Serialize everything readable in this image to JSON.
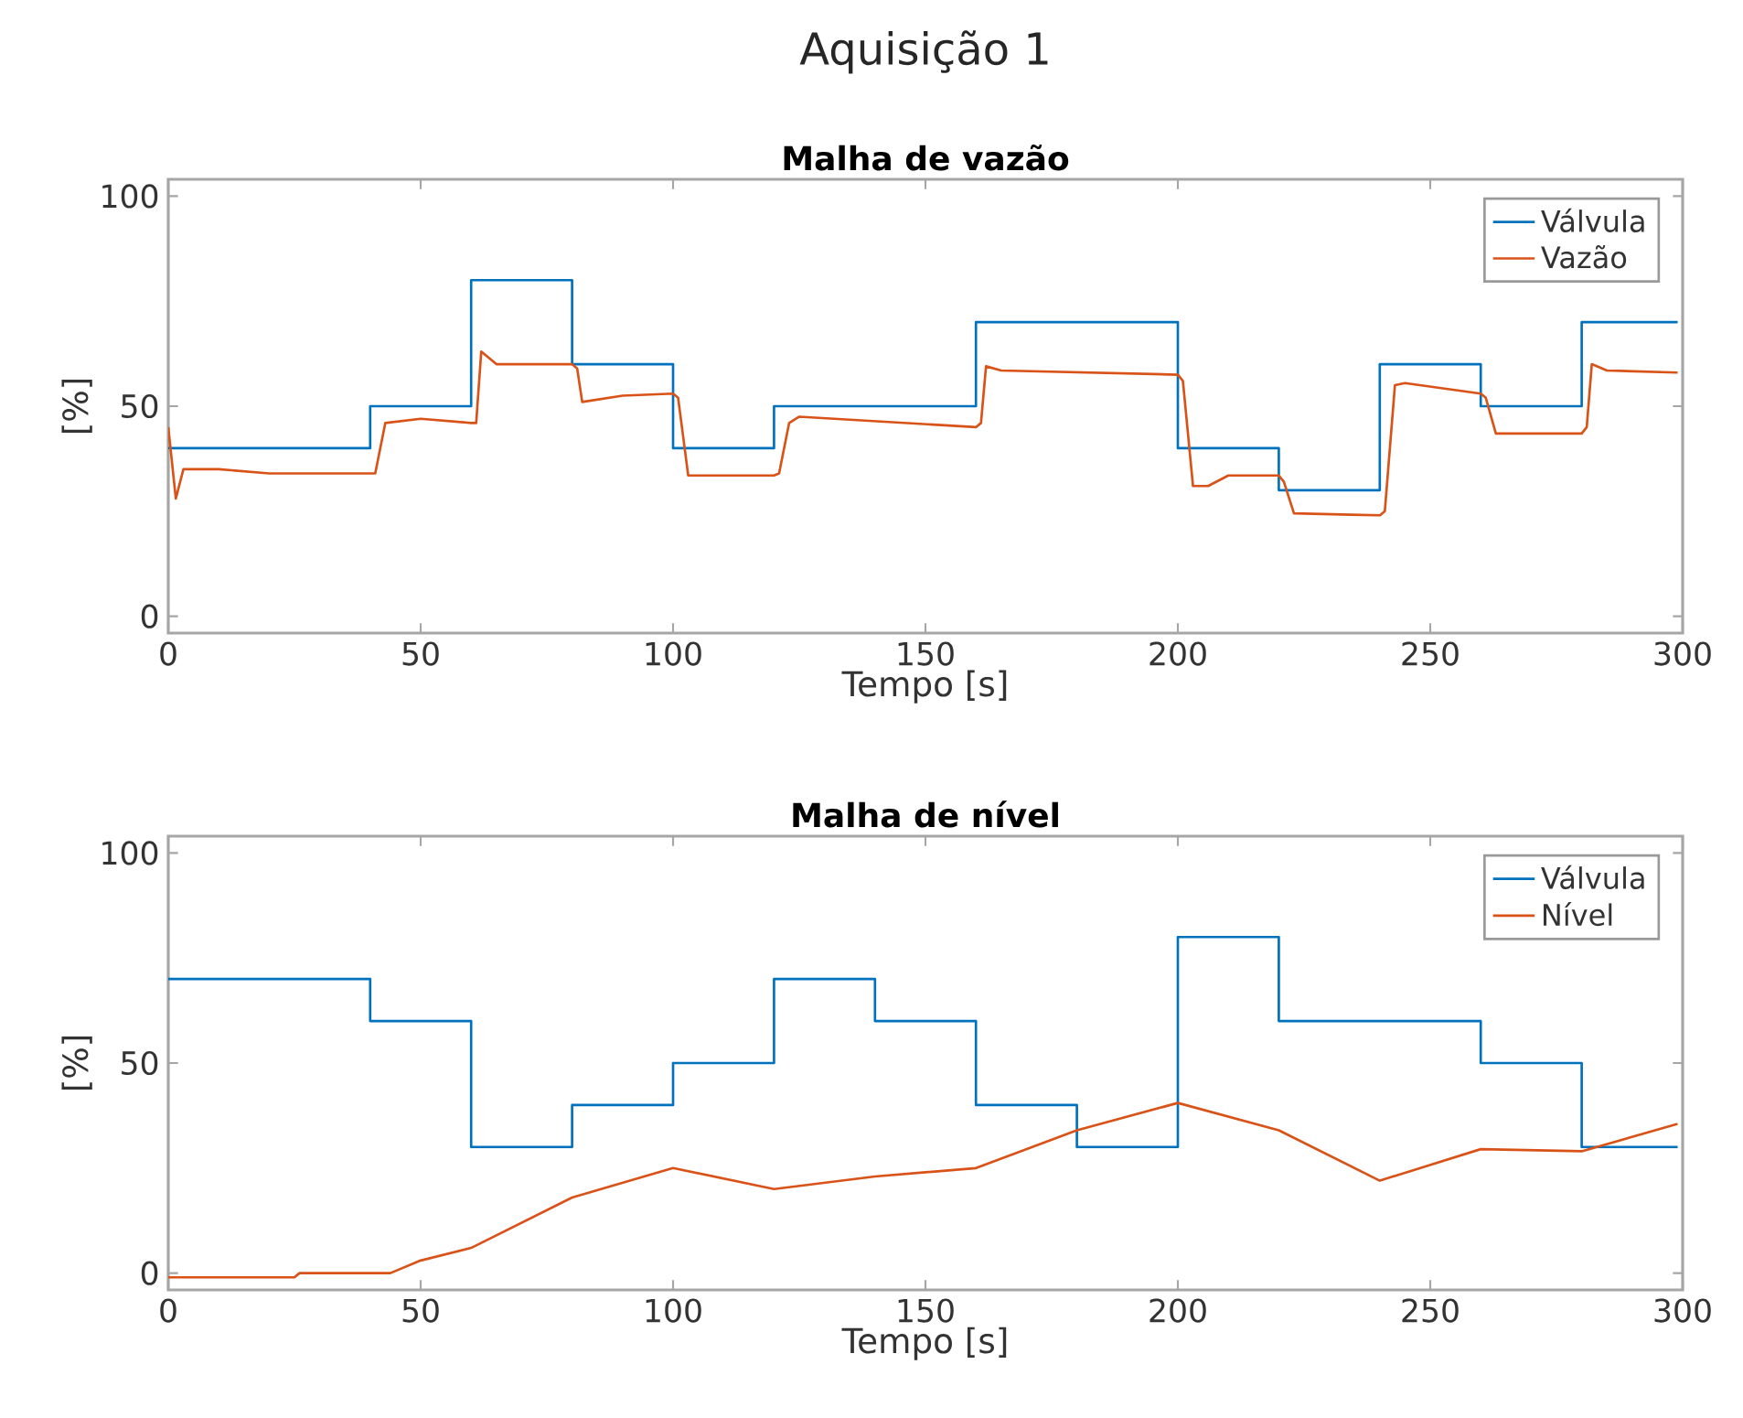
{
  "chart_data": [
    {
      "type": "line",
      "title": "Aquisição 1",
      "subtitle": "Malha de vazão",
      "xlabel": "Tempo [s]",
      "ylabel": "[%]",
      "xlim": [
        0,
        300
      ],
      "ylim": [
        -4,
        104
      ],
      "xticks": [
        0,
        50,
        100,
        150,
        200,
        250,
        300
      ],
      "yticks": [
        0,
        50,
        100
      ],
      "legend": "top right",
      "grid": false,
      "series": [
        {
          "name": "Válvula",
          "type": "step",
          "color": "#0072bd",
          "x": [
            0,
            40,
            60,
            80,
            100,
            120,
            160,
            200,
            220,
            240,
            260,
            280,
            299
          ],
          "values": [
            40,
            50,
            80,
            60,
            40,
            50,
            70,
            40,
            30,
            60,
            50,
            70,
            70
          ]
        },
        {
          "name": "Vazão",
          "color": "#d95319",
          "x": [
            0,
            1.5,
            3,
            10,
            20,
            40,
            41,
            43,
            50,
            60,
            61,
            62,
            65,
            80,
            81,
            82,
            90,
            100,
            101,
            103,
            120,
            121,
            123,
            125,
            160,
            161,
            162,
            165,
            200,
            201,
            203,
            206,
            210,
            220,
            221,
            223,
            240,
            241,
            243,
            245,
            260,
            261,
            263,
            280,
            281,
            282,
            285,
            299
          ],
          "values": [
            45,
            28,
            35,
            35,
            34,
            34,
            34,
            46,
            47,
            46,
            46,
            63,
            60,
            60,
            59,
            51,
            52.5,
            53,
            52,
            33.5,
            33.5,
            34,
            46,
            47.5,
            45,
            46,
            59.5,
            58.5,
            57.5,
            56,
            31,
            31,
            33.5,
            33.5,
            32,
            24.5,
            24,
            25,
            55,
            55.5,
            53,
            52,
            43.5,
            43.5,
            45,
            60,
            58.5,
            58
          ]
        }
      ]
    },
    {
      "type": "line",
      "title": "Malha de nível",
      "xlabel": "Tempo [s]",
      "ylabel": "[%]",
      "xlim": [
        0,
        300
      ],
      "ylim": [
        -4,
        104
      ],
      "xticks": [
        0,
        50,
        100,
        150,
        200,
        250,
        300
      ],
      "yticks": [
        0,
        50,
        100
      ],
      "legend": "top right",
      "grid": false,
      "series": [
        {
          "name": "Válvula",
          "type": "step",
          "color": "#0072bd",
          "x": [
            0,
            40,
            60,
            80,
            100,
            120,
            140,
            160,
            180,
            200,
            220,
            260,
            280,
            299
          ],
          "values": [
            70,
            60,
            30,
            40,
            50,
            70,
            60,
            40,
            30,
            80,
            60,
            50,
            30,
            30
          ]
        },
        {
          "name": "Nível",
          "color": "#d95319",
          "x": [
            0,
            25,
            26,
            44,
            50,
            60,
            80,
            100,
            120,
            140,
            160,
            180,
            200,
            220,
            240,
            260,
            280,
            299
          ],
          "values": [
            -1,
            -1,
            0,
            0,
            3,
            6,
            18,
            25,
            20,
            23,
            25,
            34,
            40.5,
            34,
            22,
            29.5,
            29,
            35.5
          ]
        }
      ]
    }
  ]
}
